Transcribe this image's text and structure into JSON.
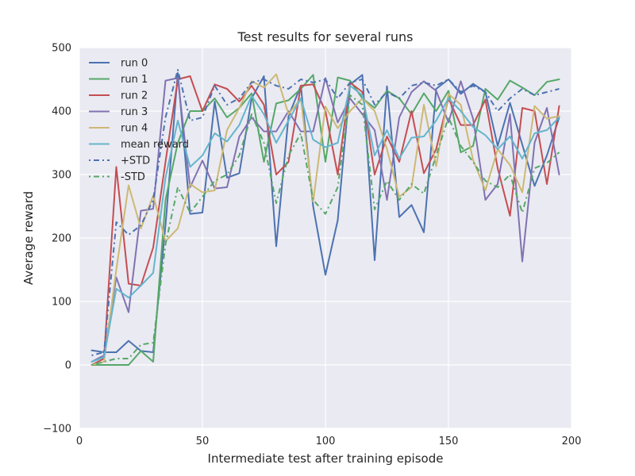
{
  "chart_data": {
    "type": "line",
    "title": "Test results for several runs",
    "xlabel": "Intermediate test after training episode",
    "ylabel": "Average reward",
    "xlim": [
      0,
      200
    ],
    "ylim": [
      -100,
      500
    ],
    "xticks": [
      0,
      50,
      100,
      150,
      200
    ],
    "yticks": [
      -100,
      0,
      100,
      200,
      300,
      400,
      500
    ],
    "grid": true,
    "legend_position": "top-left",
    "x": [
      5,
      10,
      15,
      20,
      25,
      30,
      35,
      40,
      45,
      50,
      55,
      60,
      65,
      70,
      75,
      80,
      85,
      90,
      95,
      100,
      105,
      110,
      115,
      120,
      125,
      130,
      135,
      140,
      145,
      150,
      155,
      160,
      165,
      170,
      175,
      180,
      185,
      190,
      195
    ],
    "series": [
      {
        "name": "run 0",
        "color": "#4c72b0",
        "style": "solid",
        "values": [
          23,
          20,
          20,
          38,
          22,
          20,
          220,
          460,
          238,
          240,
          415,
          295,
          302,
          420,
          455,
          187,
          392,
          440,
          250,
          142,
          228,
          442,
          457,
          165,
          439,
          233,
          252,
          209,
          435,
          450,
          427,
          443,
          430,
          345,
          413,
          347,
          282,
          330,
          390
        ]
      },
      {
        "name": "run 1",
        "color": "#55a868",
        "style": "solid",
        "values": [
          0,
          0,
          0,
          0,
          22,
          5,
          260,
          350,
          400,
          400,
          420,
          390,
          405,
          428,
          320,
          412,
          417,
          435,
          457,
          320,
          453,
          448,
          420,
          405,
          432,
          420,
          395,
          428,
          400,
          432,
          335,
          345,
          435,
          418,
          448,
          437,
          425,
          446,
          450
        ]
      },
      {
        "name": "run 2",
        "color": "#c44e52",
        "style": "solid",
        "values": [
          0,
          10,
          312,
          128,
          125,
          185,
          320,
          450,
          455,
          400,
          442,
          435,
          415,
          440,
          410,
          300,
          320,
          440,
          442,
          400,
          300,
          445,
          430,
          300,
          360,
          320,
          400,
          302,
          340,
          420,
          378,
          378,
          418,
          310,
          235,
          405,
          400,
          285,
          408
        ]
      },
      {
        "name": "run 3",
        "color": "#8172b2",
        "style": "solid",
        "values": [
          5,
          15,
          138,
          83,
          243,
          246,
          448,
          452,
          280,
          322,
          278,
          280,
          360,
          390,
          368,
          368,
          400,
          368,
          368,
          452,
          382,
          420,
          395,
          370,
          260,
          390,
          430,
          447,
          432,
          382,
          447,
          388,
          260,
          285,
          395,
          163,
          350,
          405,
          300
        ]
      },
      {
        "name": "run 4",
        "color": "#ccb974",
        "style": "solid",
        "values": [
          0,
          5,
          150,
          283,
          215,
          267,
          195,
          215,
          285,
          272,
          275,
          370,
          405,
          447,
          437,
          458,
          395,
          420,
          257,
          407,
          373,
          400,
          420,
          400,
          340,
          265,
          280,
          410,
          313,
          427,
          410,
          323,
          275,
          340,
          315,
          272,
          408,
          388,
          392
        ]
      },
      {
        "name": "mean reward",
        "color": "#64b5cd",
        "style": "solid",
        "values": [
          5,
          12,
          120,
          106,
          125,
          145,
          295,
          385,
          312,
          330,
          365,
          352,
          378,
          424,
          395,
          350,
          385,
          420,
          355,
          343,
          350,
          440,
          425,
          330,
          370,
          325,
          358,
          360,
          385,
          420,
          400,
          375,
          362,
          340,
          360,
          325,
          365,
          370,
          390
        ]
      },
      {
        "name": "+STD",
        "color": "#4c72b0",
        "style": "dashdot",
        "values": [
          15,
          20,
          225,
          205,
          220,
          260,
          390,
          465,
          385,
          390,
          440,
          410,
          420,
          445,
          450,
          440,
          435,
          450,
          445,
          450,
          420,
          445,
          450,
          410,
          430,
          420,
          440,
          445,
          440,
          450,
          430,
          440,
          430,
          400,
          420,
          435,
          425,
          430,
          435
        ]
      },
      {
        "name": "-STD",
        "color": "#55a868",
        "style": "dashdot",
        "values": [
          0,
          5,
          10,
          10,
          32,
          35,
          190,
          280,
          240,
          265,
          290,
          300,
          330,
          395,
          350,
          255,
          330,
          365,
          260,
          238,
          280,
          425,
          410,
          245,
          290,
          260,
          285,
          270,
          330,
          390,
          345,
          320,
          290,
          280,
          300,
          240,
          310,
          318,
          335
        ]
      }
    ]
  }
}
